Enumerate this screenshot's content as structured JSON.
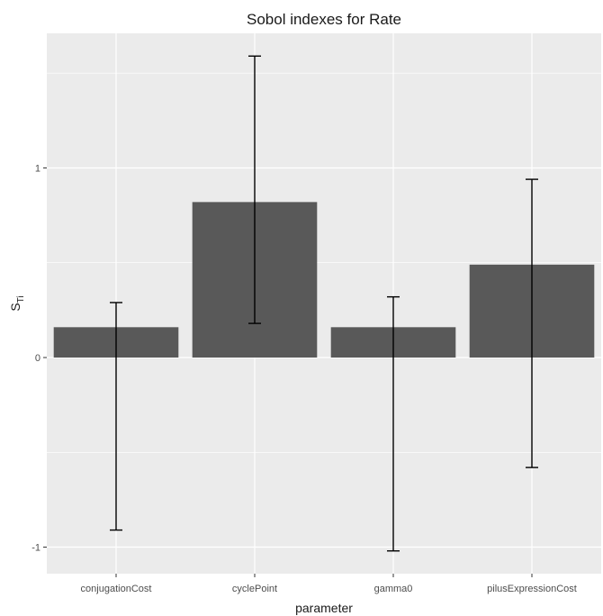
{
  "chart_data": {
    "type": "bar",
    "title": "Sobol indexes for Rate",
    "xlabel": "parameter",
    "ylabel": {
      "main": "S",
      "subscript": "Ti"
    },
    "categories": [
      "conjugationCost",
      "cyclePoint",
      "gamma0",
      "pilusExpressionCost"
    ],
    "values": [
      0.16,
      0.82,
      0.16,
      0.49
    ],
    "error_low": [
      -0.91,
      0.18,
      -1.02,
      -0.58
    ],
    "error_high": [
      0.29,
      1.59,
      0.32,
      0.94
    ],
    "ylim": [
      -1.14,
      1.71
    ],
    "y_ticks": [
      -1,
      0,
      1
    ],
    "y_tick_labels": [
      "-1",
      "0",
      "1"
    ],
    "grid": true,
    "bar_color": "#595959",
    "panel_color": "#ebebeb"
  }
}
